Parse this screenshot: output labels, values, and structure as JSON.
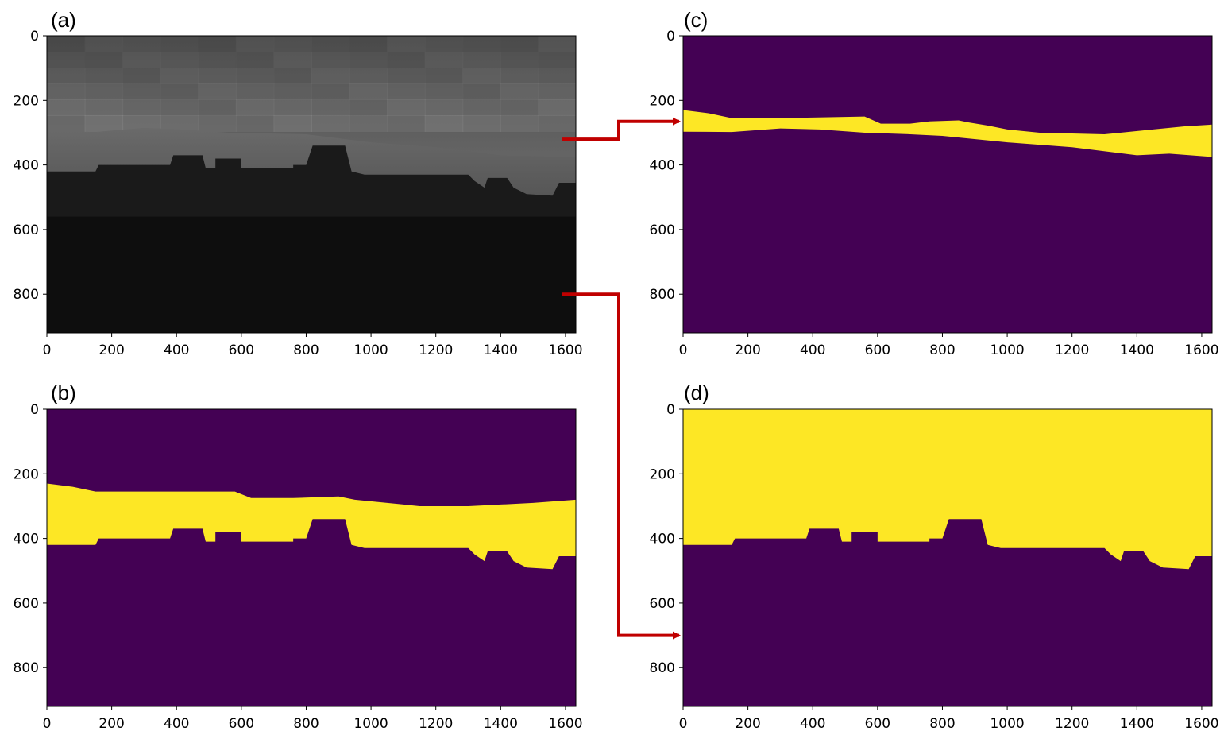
{
  "figure": {
    "description_colors": {
      "viridis_low": "#440154",
      "viridis_high": "#FDE725",
      "edge_teal": "#2A9D8F",
      "arrow": "#C00000"
    }
  },
  "chart_data": [
    {
      "panel": "(a)",
      "type": "heatmap",
      "colormap": "gray",
      "xlim": [
        0,
        1632
      ],
      "ylim": [
        920,
        0
      ],
      "xticks": [
        "0",
        "200",
        "400",
        "600",
        "800",
        "1000",
        "1200",
        "1400",
        "1600"
      ],
      "yticks": [
        "0",
        "200",
        "400",
        "600",
        "800"
      ],
      "regions": [
        {
          "name": "sky",
          "gray_top": 80,
          "gray_bottom": 150,
          "y_from": 0,
          "y_to": 290
        },
        {
          "name": "mountains",
          "gray": 95,
          "boundary_top": [
            [
              0,
              295
            ],
            [
              150,
              298
            ],
            [
              300,
              285
            ],
            [
              420,
              290
            ],
            [
              560,
              300
            ],
            [
              800,
              305
            ],
            [
              1000,
              330
            ],
            [
              1200,
              345
            ],
            [
              1400,
              370
            ],
            [
              1632,
              375
            ]
          ]
        },
        {
          "name": "buildings",
          "gray": 15,
          "y_from": 420,
          "y_to": 920
        }
      ]
    },
    {
      "panel": "(b)",
      "type": "heatmap",
      "colormap": "viridis",
      "xlim": [
        0,
        1632
      ],
      "ylim": [
        920,
        0
      ],
      "xticks": [
        "0",
        "200",
        "400",
        "600",
        "800",
        "1000",
        "1200",
        "1400",
        "1600"
      ],
      "yticks": [
        "0",
        "200",
        "400",
        "600",
        "800"
      ],
      "mask_top": [
        [
          0,
          230
        ],
        [
          80,
          240
        ],
        [
          150,
          255
        ],
        [
          300,
          255
        ],
        [
          400,
          255
        ],
        [
          580,
          255
        ],
        [
          630,
          275
        ],
        [
          760,
          275
        ],
        [
          900,
          270
        ],
        [
          950,
          280
        ],
        [
          1100,
          295
        ],
        [
          1150,
          300
        ],
        [
          1300,
          300
        ],
        [
          1400,
          295
        ],
        [
          1500,
          290
        ],
        [
          1632,
          280
        ]
      ],
      "mask_bottom": [
        [
          0,
          420
        ],
        [
          150,
          420
        ],
        [
          160,
          400
        ],
        [
          380,
          400
        ],
        [
          390,
          370
        ],
        [
          480,
          370
        ],
        [
          490,
          410
        ],
        [
          520,
          410
        ],
        [
          520,
          380
        ],
        [
          600,
          380
        ],
        [
          600,
          410
        ],
        [
          760,
          410
        ],
        [
          760,
          400
        ],
        [
          800,
          400
        ],
        [
          820,
          340
        ],
        [
          920,
          340
        ],
        [
          940,
          420
        ],
        [
          980,
          430
        ],
        [
          1300,
          430
        ],
        [
          1320,
          450
        ],
        [
          1350,
          470
        ],
        [
          1360,
          440
        ],
        [
          1420,
          440
        ],
        [
          1440,
          470
        ],
        [
          1480,
          490
        ],
        [
          1560,
          495
        ],
        [
          1580,
          455
        ],
        [
          1632,
          455
        ]
      ]
    },
    {
      "panel": "(c)",
      "type": "heatmap",
      "colormap": "viridis",
      "xlim": [
        0,
        1632
      ],
      "ylim": [
        920,
        0
      ],
      "xticks": [
        "0",
        "200",
        "400",
        "600",
        "800",
        "1000",
        "1200",
        "1400",
        "1600"
      ],
      "yticks": [
        "0",
        "200",
        "400",
        "600",
        "800"
      ],
      "mask_top": [
        [
          0,
          230
        ],
        [
          80,
          240
        ],
        [
          150,
          255
        ],
        [
          300,
          255
        ],
        [
          450,
          252
        ],
        [
          560,
          250
        ],
        [
          610,
          272
        ],
        [
          700,
          272
        ],
        [
          760,
          265
        ],
        [
          850,
          262
        ],
        [
          880,
          268
        ],
        [
          940,
          278
        ],
        [
          1000,
          290
        ],
        [
          1100,
          300
        ],
        [
          1300,
          305
        ],
        [
          1450,
          290
        ],
        [
          1550,
          280
        ],
        [
          1632,
          275
        ]
      ],
      "mask_bottom": [
        [
          0,
          297
        ],
        [
          150,
          298
        ],
        [
          300,
          287
        ],
        [
          420,
          290
        ],
        [
          560,
          300
        ],
        [
          700,
          305
        ],
        [
          800,
          310
        ],
        [
          1000,
          330
        ],
        [
          1200,
          345
        ],
        [
          1400,
          370
        ],
        [
          1500,
          365
        ],
        [
          1632,
          375
        ]
      ]
    },
    {
      "panel": "(d)",
      "type": "heatmap",
      "colormap": "viridis",
      "xlim": [
        0,
        1632
      ],
      "ylim": [
        920,
        0
      ],
      "xticks": [
        "0",
        "200",
        "400",
        "600",
        "800",
        "1000",
        "1200",
        "1400",
        "1600"
      ],
      "yticks": [
        "0",
        "200",
        "400",
        "600",
        "800"
      ],
      "mask_top": [
        [
          0,
          0
        ],
        [
          1632,
          0
        ]
      ],
      "mask_bottom": [
        [
          0,
          420
        ],
        [
          150,
          420
        ],
        [
          160,
          400
        ],
        [
          380,
          400
        ],
        [
          390,
          370
        ],
        [
          480,
          370
        ],
        [
          490,
          410
        ],
        [
          520,
          410
        ],
        [
          520,
          380
        ],
        [
          600,
          380
        ],
        [
          600,
          410
        ],
        [
          760,
          410
        ],
        [
          760,
          400
        ],
        [
          800,
          400
        ],
        [
          820,
          340
        ],
        [
          920,
          340
        ],
        [
          940,
          420
        ],
        [
          980,
          430
        ],
        [
          1300,
          430
        ],
        [
          1320,
          450
        ],
        [
          1350,
          470
        ],
        [
          1360,
          440
        ],
        [
          1420,
          440
        ],
        [
          1440,
          470
        ],
        [
          1480,
          490
        ],
        [
          1560,
          495
        ],
        [
          1580,
          455
        ],
        [
          1632,
          455
        ]
      ]
    }
  ],
  "connectors": [
    {
      "from": "(a)",
      "to": "(c)",
      "at_y": 320
    },
    {
      "from": "(a)",
      "to": "(d)",
      "at_y": 800
    }
  ]
}
